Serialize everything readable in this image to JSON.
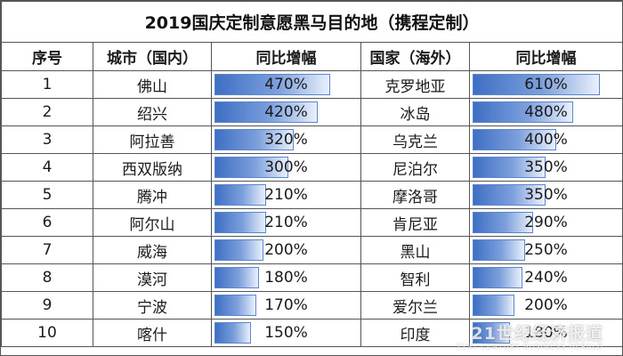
{
  "title": "2019国庆定制意愿黑马目的地（携程定制）",
  "headers": [
    "序号",
    "城市（国内）",
    "同比增幅",
    "国家（海外）",
    "同比增幅"
  ],
  "rows": [
    {
      "rank": "1",
      "city": "佛山",
      "city_growth": "470%",
      "city_growth_pct": 470,
      "country": "克罗地亚",
      "country_growth": "610%",
      "country_growth_pct": 610
    },
    {
      "rank": "2",
      "city": "绍兴",
      "city_growth": "420%",
      "city_growth_pct": 420,
      "country": "冰岛",
      "country_growth": "480%",
      "country_growth_pct": 480
    },
    {
      "rank": "3",
      "city": "阿拉善",
      "city_growth": "320%",
      "city_growth_pct": 320,
      "country": "乌克兰",
      "country_growth": "400%",
      "country_growth_pct": 400
    },
    {
      "rank": "4",
      "city": "西双版纳",
      "city_growth": "300%",
      "city_growth_pct": 300,
      "country": "尼泊尔",
      "country_growth": "350%",
      "country_growth_pct": 350
    },
    {
      "rank": "5",
      "city": "腾冲",
      "city_growth": "210%",
      "city_growth_pct": 210,
      "country": "摩洛哥",
      "country_growth": "350%",
      "country_growth_pct": 350
    },
    {
      "rank": "6",
      "city": "阿尔山",
      "city_growth": "210%",
      "city_growth_pct": 210,
      "country": "肯尼亚",
      "country_growth": "290%",
      "country_growth_pct": 290
    },
    {
      "rank": "7",
      "city": "威海",
      "city_growth": "200%",
      "city_growth_pct": 200,
      "country": "黑山",
      "country_growth": "250%",
      "country_growth_pct": 250
    },
    {
      "rank": "8",
      "city": "漠河",
      "city_growth": "180%",
      "city_growth_pct": 180,
      "country": "智利",
      "country_growth": "240%",
      "country_growth_pct": 240
    },
    {
      "rank": "9",
      "city": "宁波",
      "city_growth": "170%",
      "city_growth_pct": 170,
      "country": "爱尔兰",
      "country_growth": "200%",
      "country_growth_pct": 200
    },
    {
      "rank": "10",
      "city": "喀什",
      "city_growth": "150%",
      "city_growth_pct": 150,
      "country": "印度",
      "country_growth": "180%",
      "country_growth_pct": 180
    }
  ],
  "watermark": {
    "cn": "21世纪经济报道",
    "en": "21ST CENTURY BUSINESS HERALD"
  },
  "colors": {
    "bar_dark": "#3e6fc4",
    "bar_light": "#e9f0fb",
    "border": "#555555"
  }
}
